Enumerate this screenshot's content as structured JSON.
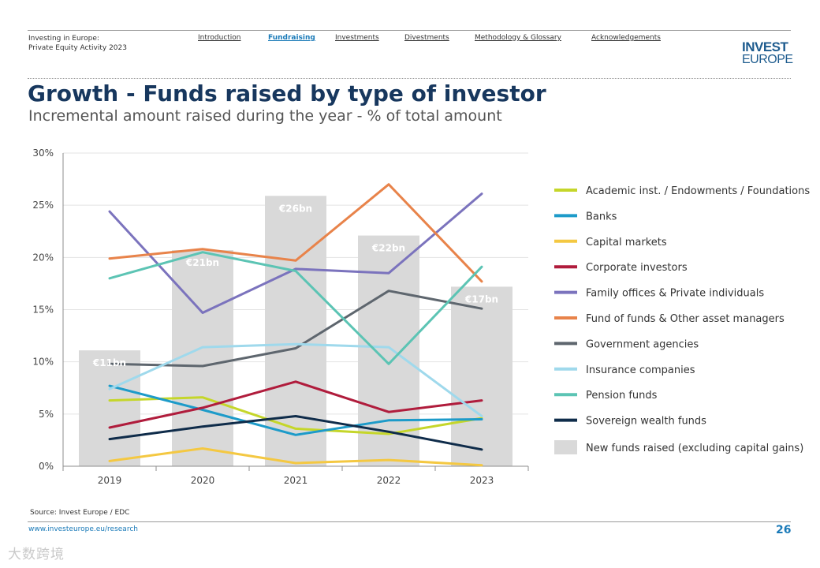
{
  "header": {
    "doc_title_line1": "Investing in Europe:",
    "doc_title_line2": "Private Equity Activity 2023",
    "nav": [
      "Introduction",
      "Fundraising",
      "Investments",
      "Divestments",
      "Methodology & Glossary",
      "Acknowledgements"
    ],
    "active_nav": "Fundraising",
    "logo_line1": "INVEST",
    "logo_line2": "EUROPE"
  },
  "title": "Growth - Funds raised by type of investor",
  "subtitle": "Incremental amount raised during the year - % of total amount",
  "chart_data": {
    "type": "line",
    "x": [
      "2019",
      "2020",
      "2021",
      "2022",
      "2023"
    ],
    "ylim": [
      0,
      30
    ],
    "yticks": [
      0,
      5,
      10,
      15,
      20,
      25,
      30
    ],
    "ytick_labels": [
      "0%",
      "5%",
      "10%",
      "15%",
      "20%",
      "25%",
      "30%"
    ],
    "grid": true,
    "legend_position": "right",
    "bars": {
      "name": "New funds raised (excluding capital gains)",
      "values": [
        11.1,
        20.7,
        25.9,
        22.1,
        17.2
      ],
      "labels": [
        "€11bn",
        "€21bn",
        "€26bn",
        "€22bn",
        "€17bn"
      ],
      "color": "#d9d9d9"
    },
    "series": [
      {
        "name": "Academic inst. / Endowments / Foundations",
        "color": "#c5d62a",
        "values": [
          6.3,
          6.6,
          3.6,
          3.1,
          4.6
        ]
      },
      {
        "name": "Banks",
        "color": "#1d9bc9",
        "values": [
          7.7,
          5.4,
          3.0,
          4.4,
          4.5
        ]
      },
      {
        "name": "Capital markets",
        "color": "#f4c842",
        "values": [
          0.5,
          1.7,
          0.3,
          0.6,
          0.1
        ]
      },
      {
        "name": "Corporate investors",
        "color": "#b01c3c",
        "values": [
          3.7,
          5.6,
          8.1,
          5.2,
          6.3
        ]
      },
      {
        "name": "Family offices & Private individuals",
        "color": "#7b73bd",
        "values": [
          24.4,
          14.7,
          18.9,
          18.5,
          26.1
        ]
      },
      {
        "name": "Fund of funds & Other asset managers",
        "color": "#e8834a",
        "values": [
          19.9,
          20.8,
          19.7,
          27.0,
          17.7
        ]
      },
      {
        "name": "Government agencies",
        "color": "#5e666e",
        "values": [
          9.8,
          9.6,
          11.3,
          16.8,
          15.1
        ]
      },
      {
        "name": "Insurance companies",
        "color": "#9fd9ec",
        "values": [
          7.4,
          11.4,
          11.7,
          11.4,
          4.8
        ]
      },
      {
        "name": "Pension funds",
        "color": "#5cc4b4",
        "values": [
          18.0,
          20.5,
          18.7,
          9.8,
          19.1
        ]
      },
      {
        "name": "Sovereign wealth funds",
        "color": "#0f2c4a",
        "values": [
          2.6,
          3.8,
          4.8,
          3.3,
          1.6
        ]
      }
    ]
  },
  "footer": {
    "source": "Source: Invest Europe / EDC",
    "url": "www.investeurope.eu/research",
    "page_number": "26",
    "watermark": "大数跨境"
  }
}
